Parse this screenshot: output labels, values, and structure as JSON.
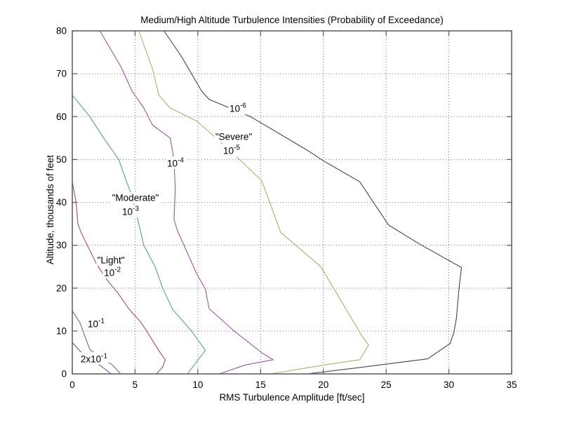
{
  "chart_data": {
    "type": "line",
    "subtype": "contour",
    "title": "Medium/High Altitude Turbulence Intensities (Probability of Exceedance)",
    "xlabel": "RMS Turbulence Amplitude [ft/sec]",
    "ylabel": "Altitude, thousands of feet",
    "xlim": [
      0,
      35
    ],
    "ylim": [
      0,
      80
    ],
    "xticks": [
      0,
      5,
      10,
      15,
      20,
      25,
      30,
      35
    ],
    "yticks": [
      0,
      10,
      20,
      30,
      40,
      50,
      60,
      70,
      80
    ],
    "grid": "dotted",
    "legend_position": "none",
    "frame_color": "#595959",
    "grid_color": "#5a5a5a",
    "label_color": "#000000",
    "series": [
      {
        "name": "2x10^-1",
        "probability": "2x10^-1",
        "color": "#5055b0",
        "points": [
          [
            0,
            7.3
          ],
          [
            0.85,
            4.6
          ],
          [
            1.6,
            3.2
          ],
          [
            2.3,
            1.8
          ],
          [
            3.1,
            0
          ]
        ]
      },
      {
        "name": "10^-1",
        "probability": "10^-1",
        "color": "#567f57",
        "points": [
          [
            0,
            14.7
          ],
          [
            0.6,
            12
          ],
          [
            0.85,
            10
          ],
          [
            1.4,
            5.7
          ],
          [
            2.3,
            3.8
          ],
          [
            3.2,
            2.1
          ],
          [
            3.85,
            0
          ]
        ]
      },
      {
        "name": "10^-2",
        "probability": "10^-2",
        "color": "#a85252",
        "points": [
          [
            0,
            44.8
          ],
          [
            0.3,
            40
          ],
          [
            0.45,
            35
          ],
          [
            0.67,
            33.2
          ],
          [
            1.35,
            29.1
          ],
          [
            1.95,
            25.5
          ],
          [
            2.9,
            21.4
          ],
          [
            3.6,
            19
          ],
          [
            4.5,
            15.2
          ],
          [
            5.5,
            11.9
          ],
          [
            6.2,
            8.7
          ],
          [
            6.9,
            5.4
          ],
          [
            7.4,
            3.3
          ],
          [
            7.2,
            1.6
          ],
          [
            6.7,
            0
          ]
        ]
      },
      {
        "name": "10^-3",
        "probability": "10^-3",
        "color": "#55a189",
        "points": [
          [
            0,
            65
          ],
          [
            1.4,
            60
          ],
          [
            2.5,
            55
          ],
          [
            3.7,
            50
          ],
          [
            4.3,
            45
          ],
          [
            4.7,
            42
          ],
          [
            5.3,
            35
          ],
          [
            5.7,
            30
          ],
          [
            6.6,
            25
          ],
          [
            7.2,
            20
          ],
          [
            8,
            15
          ],
          [
            9.5,
            10
          ],
          [
            10.6,
            5.5
          ],
          [
            9.3,
            0.5
          ],
          [
            9.2,
            0
          ]
        ]
      },
      {
        "name": "10^-4",
        "probability": "10^-4",
        "color": "#9a55a0",
        "points": [
          [
            2.2,
            80
          ],
          [
            3.9,
            71.5
          ],
          [
            4.75,
            66
          ],
          [
            5.7,
            62
          ],
          [
            6.4,
            58
          ],
          [
            7.8,
            55
          ],
          [
            8.1,
            50
          ],
          [
            8.2,
            43
          ],
          [
            8.1,
            36
          ],
          [
            8.4,
            33.2
          ],
          [
            8.9,
            30
          ],
          [
            9.9,
            23.4
          ],
          [
            10.6,
            19.8
          ],
          [
            10.9,
            15.2
          ],
          [
            12.9,
            10
          ],
          [
            14.2,
            7
          ],
          [
            15.1,
            4.9
          ],
          [
            16,
            3.3
          ],
          [
            13.8,
            2.1
          ],
          [
            11.7,
            0
          ]
        ]
      },
      {
        "name": "10^-5",
        "probability": "10^-5",
        "color": "#b0ae68",
        "points": [
          [
            5.3,
            80
          ],
          [
            6.4,
            71
          ],
          [
            6.9,
            65
          ],
          [
            7.8,
            62
          ],
          [
            9.9,
            59
          ],
          [
            12.6,
            52
          ],
          [
            15.1,
            45
          ],
          [
            16.6,
            33
          ],
          [
            19.8,
            25
          ],
          [
            23,
            9.2
          ],
          [
            23.6,
            6.7
          ],
          [
            22.9,
            3.3
          ],
          [
            20.1,
            2.1
          ],
          [
            15.8,
            0
          ]
        ]
      },
      {
        "name": "10^-6",
        "probability": "10^-6",
        "color": "#42425c",
        "points": [
          [
            7.3,
            80
          ],
          [
            8.7,
            74
          ],
          [
            10.3,
            66
          ],
          [
            10.9,
            64
          ],
          [
            14.2,
            60
          ],
          [
            18.8,
            52
          ],
          [
            20,
            49.7
          ],
          [
            22.9,
            44.8
          ],
          [
            25.2,
            34.7
          ],
          [
            27.6,
            30.4
          ],
          [
            31,
            24.8
          ],
          [
            30.8,
            19.8
          ],
          [
            30.6,
            13
          ],
          [
            30.4,
            9.7
          ],
          [
            30.1,
            7.1
          ],
          [
            28.3,
            3.5
          ],
          [
            23.2,
            1.6
          ],
          [
            18.7,
            0
          ]
        ]
      }
    ],
    "annotations": [
      {
        "text": "\"Light\"",
        "x": 3.08,
        "y": 26.5
      },
      {
        "base": "10",
        "exp": "-2",
        "x": 3.19,
        "y": 23.56
      },
      {
        "text": "\"Moderate\"",
        "x": 5.03,
        "y": 41.06
      },
      {
        "base": "10",
        "exp": "-3",
        "x": 4.64,
        "y": 37.79
      },
      {
        "base": "10",
        "exp": "-4",
        "x": 8.22,
        "y": 49.08
      },
      {
        "text": "\"Severe\"",
        "x": 12.86,
        "y": 55.3
      },
      {
        "base": "10",
        "exp": "-5",
        "x": 12.69,
        "y": 52.02
      },
      {
        "base": "10",
        "exp": "-6",
        "x": 13.19,
        "y": 61.84
      },
      {
        "base": "10",
        "exp": "-1",
        "x": 1.9,
        "y": 11.62
      },
      {
        "prefix": "2x",
        "base": "10",
        "exp": "-1",
        "x": 1.73,
        "y": 3.44
      }
    ]
  }
}
